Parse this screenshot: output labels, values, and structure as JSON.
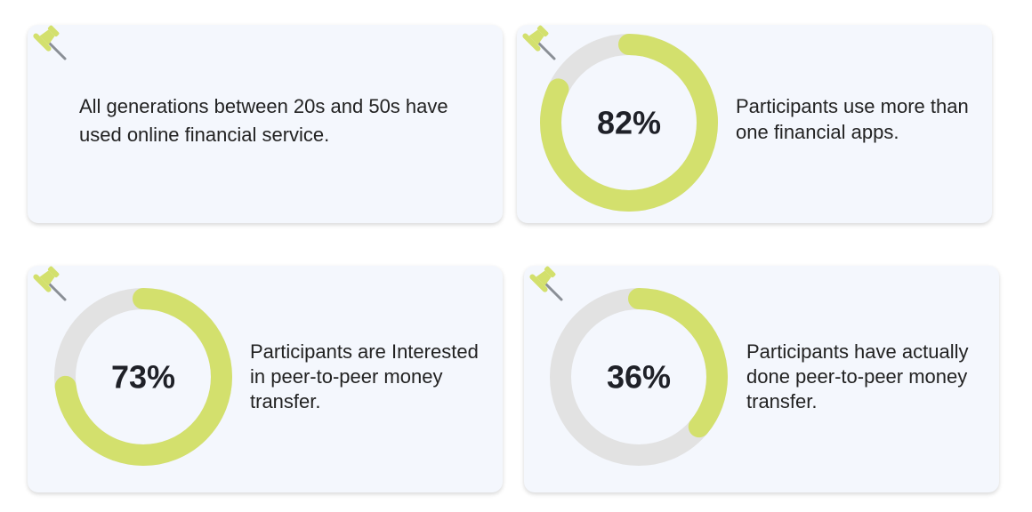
{
  "colors": {
    "card_background": "#f4f7fd",
    "accent_green": "#d3e06d",
    "track_gray": "#e2e2e2",
    "text_dark": "#222222"
  },
  "icons": {
    "pin": "pushpin-icon"
  },
  "cards": [
    {
      "text": "All generations between 20s and 50s have used online financial service."
    },
    {
      "percent_label": "82%",
      "text": "Participants use more than one financial apps."
    },
    {
      "percent_label": "73%",
      "text": "Participants are Interested in peer-to-peer money transfer."
    },
    {
      "percent_label": "36%",
      "text": "Participants have actually done peer-to-peer money transfer."
    }
  ],
  "chart_data": [
    {
      "type": "pie",
      "style": "donut",
      "categories": [
        "Participants use more than one financial apps."
      ],
      "values": [
        82
      ],
      "max": 100
    },
    {
      "type": "pie",
      "style": "donut",
      "categories": [
        "Participants are Interested in peer-to-peer money transfer."
      ],
      "values": [
        73
      ],
      "max": 100
    },
    {
      "type": "pie",
      "style": "donut",
      "categories": [
        "Participants have actually done peer-to-peer money transfer."
      ],
      "values": [
        36
      ],
      "max": 100
    }
  ]
}
